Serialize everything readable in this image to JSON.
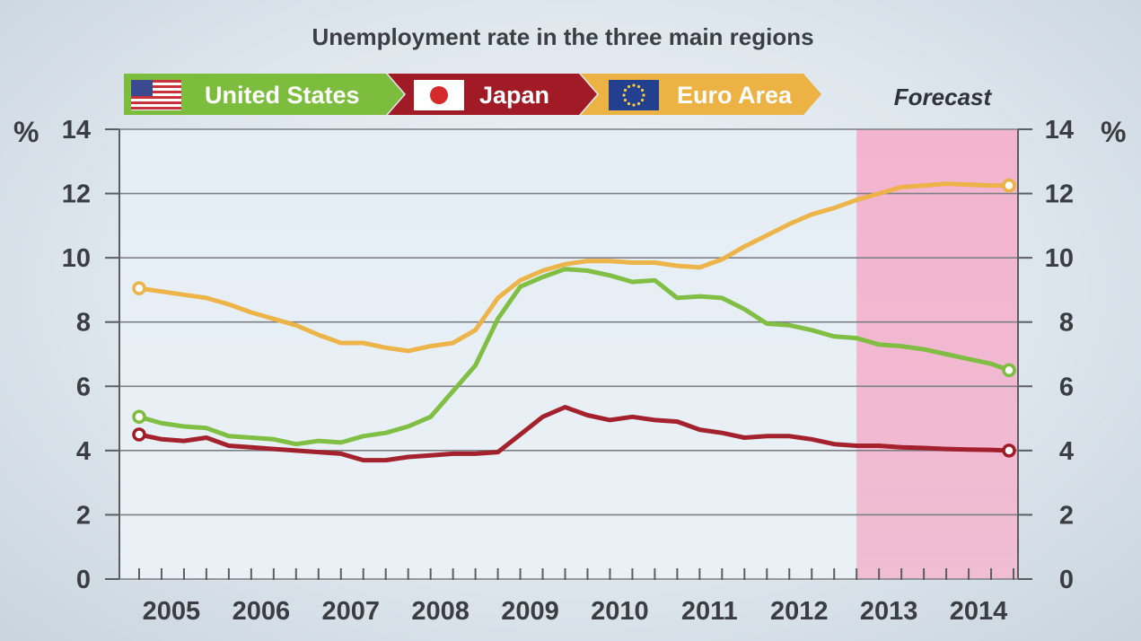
{
  "chart_data": {
    "type": "line",
    "title": "Unemployment rate in the three main regions",
    "forecast_label": "Forecast",
    "forecast_range": [
      2013.0,
      2014.8
    ],
    "y_unit_left": "%",
    "y_unit_right": "%",
    "ylim": [
      0,
      14
    ],
    "y_ticks": [
      "0",
      "2",
      "4",
      "6",
      "8",
      "10",
      "12",
      "14"
    ],
    "xlim": [
      2004.78,
      2014.8
    ],
    "x_ticks": [
      "2005",
      "2006",
      "2007",
      "2008",
      "2009",
      "2010",
      "2011",
      "2012",
      "2013",
      "2014"
    ],
    "grid": true,
    "legend_position": "top",
    "series": [
      {
        "name": "United States",
        "color": "#7cbd3e",
        "flag": "us-flag",
        "points": [
          [
            2005.0,
            5.05
          ],
          [
            2005.25,
            4.85
          ],
          [
            2005.5,
            4.75
          ],
          [
            2005.75,
            4.7
          ],
          [
            2006.0,
            4.45
          ],
          [
            2006.25,
            4.4
          ],
          [
            2006.5,
            4.35
          ],
          [
            2006.75,
            4.2
          ],
          [
            2007.0,
            4.3
          ],
          [
            2007.25,
            4.25
          ],
          [
            2007.5,
            4.45
          ],
          [
            2007.75,
            4.55
          ],
          [
            2008.0,
            4.75
          ],
          [
            2008.25,
            5.05
          ],
          [
            2008.5,
            5.85
          ],
          [
            2008.75,
            6.65
          ],
          [
            2009.0,
            8.1
          ],
          [
            2009.25,
            9.1
          ],
          [
            2009.5,
            9.4
          ],
          [
            2009.75,
            9.65
          ],
          [
            2010.0,
            9.6
          ],
          [
            2010.25,
            9.45
          ],
          [
            2010.5,
            9.25
          ],
          [
            2010.75,
            9.3
          ],
          [
            2011.0,
            8.75
          ],
          [
            2011.25,
            8.8
          ],
          [
            2011.5,
            8.75
          ],
          [
            2011.75,
            8.4
          ],
          [
            2012.0,
            7.95
          ],
          [
            2012.25,
            7.9
          ],
          [
            2012.5,
            7.75
          ],
          [
            2012.75,
            7.55
          ],
          [
            2013.0,
            7.5
          ],
          [
            2013.25,
            7.3
          ],
          [
            2013.5,
            7.25
          ],
          [
            2013.75,
            7.15
          ],
          [
            2014.0,
            7.0
          ],
          [
            2014.25,
            6.85
          ],
          [
            2014.5,
            6.7
          ],
          [
            2014.7,
            6.5
          ]
        ]
      },
      {
        "name": "Japan",
        "color": "#a01b26",
        "flag": "japan-flag",
        "points": [
          [
            2005.0,
            4.5
          ],
          [
            2005.25,
            4.35
          ],
          [
            2005.5,
            4.3
          ],
          [
            2005.75,
            4.4
          ],
          [
            2006.0,
            4.15
          ],
          [
            2006.25,
            4.1
          ],
          [
            2006.5,
            4.05
          ],
          [
            2006.75,
            4.0
          ],
          [
            2007.0,
            3.95
          ],
          [
            2007.25,
            3.9
          ],
          [
            2007.5,
            3.7
          ],
          [
            2007.75,
            3.7
          ],
          [
            2008.0,
            3.8
          ],
          [
            2008.25,
            3.85
          ],
          [
            2008.5,
            3.9
          ],
          [
            2008.75,
            3.9
          ],
          [
            2009.0,
            3.95
          ],
          [
            2009.25,
            4.5
          ],
          [
            2009.5,
            5.05
          ],
          [
            2009.75,
            5.35
          ],
          [
            2010.0,
            5.1
          ],
          [
            2010.25,
            4.95
          ],
          [
            2010.5,
            5.05
          ],
          [
            2010.75,
            4.95
          ],
          [
            2011.0,
            4.9
          ],
          [
            2011.25,
            4.65
          ],
          [
            2011.5,
            4.55
          ],
          [
            2011.75,
            4.4
          ],
          [
            2012.0,
            4.45
          ],
          [
            2012.25,
            4.45
          ],
          [
            2012.5,
            4.35
          ],
          [
            2012.75,
            4.2
          ],
          [
            2013.0,
            4.15
          ],
          [
            2013.25,
            4.15
          ],
          [
            2013.5,
            4.1
          ],
          [
            2013.75,
            4.08
          ],
          [
            2014.0,
            4.05
          ],
          [
            2014.25,
            4.03
          ],
          [
            2014.5,
            4.02
          ],
          [
            2014.7,
            4.0
          ]
        ]
      },
      {
        "name": "Euro Area",
        "color": "#ecb243",
        "flag": "eu-flag",
        "points": [
          [
            2005.0,
            9.05
          ],
          [
            2005.25,
            8.95
          ],
          [
            2005.5,
            8.85
          ],
          [
            2005.75,
            8.75
          ],
          [
            2006.0,
            8.55
          ],
          [
            2006.25,
            8.3
          ],
          [
            2006.5,
            8.1
          ],
          [
            2006.75,
            7.9
          ],
          [
            2007.0,
            7.6
          ],
          [
            2007.25,
            7.35
          ],
          [
            2007.5,
            7.35
          ],
          [
            2007.75,
            7.2
          ],
          [
            2008.0,
            7.1
          ],
          [
            2008.25,
            7.25
          ],
          [
            2008.5,
            7.35
          ],
          [
            2008.75,
            7.75
          ],
          [
            2009.0,
            8.75
          ],
          [
            2009.25,
            9.3
          ],
          [
            2009.5,
            9.6
          ],
          [
            2009.75,
            9.8
          ],
          [
            2010.0,
            9.9
          ],
          [
            2010.25,
            9.9
          ],
          [
            2010.5,
            9.85
          ],
          [
            2010.75,
            9.85
          ],
          [
            2011.0,
            9.75
          ],
          [
            2011.25,
            9.7
          ],
          [
            2011.5,
            9.95
          ],
          [
            2011.75,
            10.35
          ],
          [
            2012.0,
            10.7
          ],
          [
            2012.25,
            11.05
          ],
          [
            2012.5,
            11.35
          ],
          [
            2012.75,
            11.55
          ],
          [
            2013.0,
            11.8
          ],
          [
            2013.25,
            12.0
          ],
          [
            2013.5,
            12.2
          ],
          [
            2013.75,
            12.25
          ],
          [
            2014.0,
            12.3
          ],
          [
            2014.25,
            12.28
          ],
          [
            2014.5,
            12.25
          ],
          [
            2014.7,
            12.25
          ]
        ]
      }
    ]
  }
}
